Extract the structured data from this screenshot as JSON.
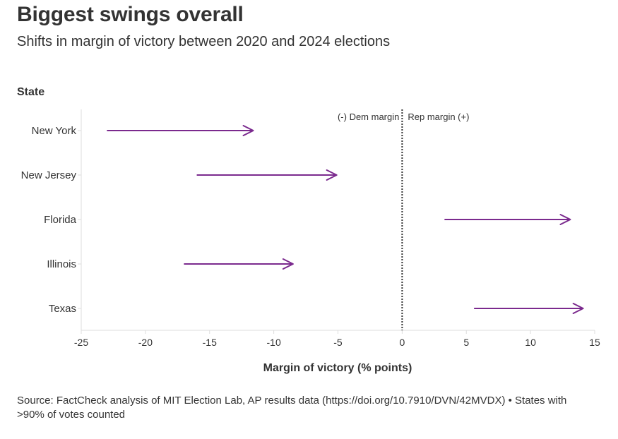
{
  "title": "Biggest swings overall",
  "subtitle": "Shifts in margin of victory between 2020 and 2024 elections",
  "source": "Source: FactCheck analysis of MIT Election Lab, AP results data (https://doi.org/10.7910/DVN/42MVDX) • States with >90% of votes counted",
  "colors": {
    "arrow": "#7b2a8e",
    "axis": "#dddddd",
    "text": "#333333",
    "zero_line": "#333333"
  },
  "chart_data": {
    "type": "arrow",
    "ylabel": "State",
    "xlabel": "Margin of victory (% points)",
    "xlim": [
      -25,
      15
    ],
    "x_ticks": [
      -25,
      -20,
      -15,
      -10,
      -5,
      0,
      5,
      10,
      15
    ],
    "x_tick_labels": [
      "-25",
      "-20",
      "-15",
      "-10",
      "-5",
      "0",
      "5",
      "10",
      "15"
    ],
    "annotation_left": "(-) Dem margin",
    "annotation_right": "Rep margin (+)",
    "series": [
      {
        "state": "New York",
        "from": -23,
        "to": -11.6
      },
      {
        "state": "New Jersey",
        "from": -16,
        "to": -5.1
      },
      {
        "state": "Florida",
        "from": 3.3,
        "to": 13.1
      },
      {
        "state": "Illinois",
        "from": -17,
        "to": -8.5
      },
      {
        "state": "Texas",
        "from": 5.6,
        "to": 14.1
      }
    ]
  }
}
